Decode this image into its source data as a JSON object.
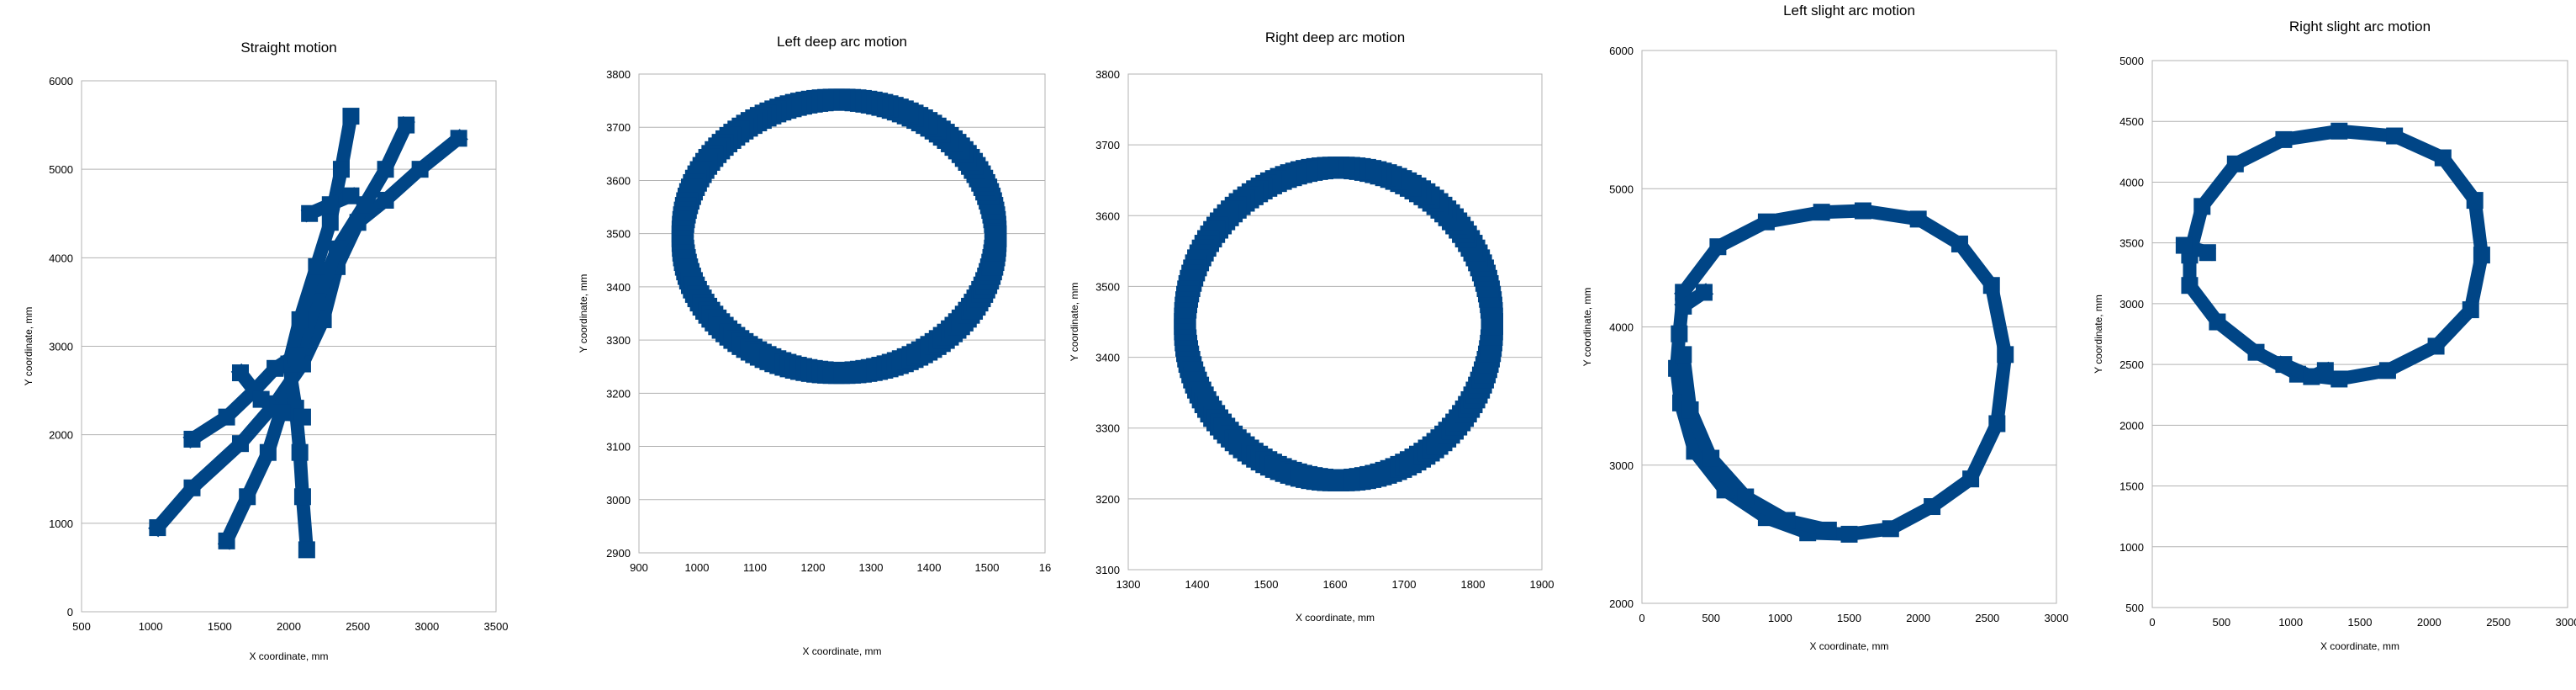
{
  "style": {
    "series_color": "#004586",
    "grid_color": "#b3b3b3"
  },
  "chart_data": [
    {
      "type": "scatter",
      "title": "Straight motion",
      "xlabel": "X coordinate, mm",
      "ylabel": "Y coordinate, mm",
      "xlim": [
        500,
        3500
      ],
      "ylim": [
        0,
        6000
      ],
      "xticks": [
        "500",
        "1000",
        "1500",
        "2000",
        "2500",
        "3000",
        "3500"
      ],
      "yticks": [
        "0",
        "1000",
        "2000",
        "3000",
        "4000",
        "5000",
        "6000"
      ],
      "grid": true,
      "marker_size": 16,
      "series": [
        {
          "points": [
            [
              1050,
              950
            ],
            [
              1300,
              1400
            ],
            [
              1650,
              1900
            ],
            [
              1900,
              2350
            ],
            [
              2100,
              2800
            ],
            [
              2250,
              3300
            ],
            [
              2350,
              3900
            ],
            [
              2500,
              4400
            ],
            [
              2700,
              4650
            ],
            [
              2950,
              5000
            ],
            [
              3230,
              5350
            ]
          ]
        },
        {
          "points": [
            [
              1550,
              800
            ],
            [
              1700,
              1300
            ],
            [
              1850,
              1800
            ],
            [
              1950,
              2300
            ],
            [
              2050,
              2800
            ],
            [
              2200,
              3500
            ],
            [
              2350,
              4100
            ],
            [
              2550,
              4600
            ],
            [
              2700,
              5000
            ],
            [
              2850,
              5500
            ]
          ]
        },
        {
          "points": [
            [
              2130,
              700
            ],
            [
              2100,
              1300
            ],
            [
              2080,
              1800
            ],
            [
              2050,
              2300
            ],
            [
              2000,
              2800
            ],
            [
              2080,
              3300
            ],
            [
              2200,
              3900
            ],
            [
              2300,
              4400
            ],
            [
              2380,
              5000
            ],
            [
              2450,
              5600
            ]
          ]
        },
        {
          "points": [
            [
              1300,
              1950
            ],
            [
              1550,
              2200
            ],
            [
              1750,
              2500
            ],
            [
              1900,
              2750
            ],
            [
              2050,
              2900
            ]
          ]
        },
        {
          "points": [
            [
              1650,
              2700
            ],
            [
              1800,
              2400
            ],
            [
              1950,
              2250
            ],
            [
              2100,
              2200
            ]
          ]
        },
        {
          "points": [
            [
              2150,
              4500
            ],
            [
              2300,
              4600
            ],
            [
              2450,
              4700
            ]
          ]
        }
      ]
    },
    {
      "type": "scatter",
      "title": "Left deep arc motion",
      "xlabel": "X coordinate, mm",
      "ylabel": "Y coordinate, mm",
      "xlim": [
        900,
        1600
      ],
      "ylim": [
        2900,
        3800
      ],
      "xticks": [
        "900",
        "1000",
        "1100",
        "1200",
        "1300",
        "1400",
        "1500",
        "16"
      ],
      "yticks": [
        "2900",
        "3000",
        "3100",
        "3200",
        "3300",
        "3400",
        "3500",
        "3600",
        "3700",
        "3800"
      ],
      "grid": true,
      "marker_size": 22,
      "series": [
        {
          "ellipse": {
            "cx": 1245,
            "cy": 3495,
            "rx": 270,
            "ry": 257
          }
        }
      ]
    },
    {
      "type": "scatter",
      "title": "Right deep arc motion",
      "xlabel": "X coordinate, mm",
      "ylabel": "Y coordinate, mm",
      "xlim": [
        1300,
        1900
      ],
      "ylim": [
        3100,
        3800
      ],
      "xticks": [
        "1300",
        "1400",
        "1500",
        "1600",
        "1700",
        "1800",
        "1900"
      ],
      "yticks": [
        "3100",
        "3200",
        "3300",
        "3400",
        "3500",
        "3600",
        "3700",
        "3800"
      ],
      "grid": true,
      "marker_size": 22,
      "series": [
        {
          "ellipse": {
            "cx": 1605,
            "cy": 3447,
            "rx": 223,
            "ry": 221
          }
        }
      ]
    },
    {
      "type": "scatter",
      "title": "Left slight arc motion",
      "xlabel": "X coordinate, mm",
      "ylabel": "Y coordinate, mm",
      "xlim": [
        0,
        3000
      ],
      "ylim": [
        2000,
        6000
      ],
      "xticks": [
        "0",
        "500",
        "1000",
        "1500",
        "2000",
        "2500",
        "3000"
      ],
      "yticks": [
        "2000",
        "3000",
        "4000",
        "5000",
        "6000"
      ],
      "grid": true,
      "marker_size": 16,
      "series": [
        {
          "points": [
            [
              300,
              4250
            ],
            [
              550,
              4580
            ],
            [
              900,
              4760
            ],
            [
              1300,
              4830
            ],
            [
              1600,
              4840
            ],
            [
              2000,
              4780
            ],
            [
              2300,
              4600
            ],
            [
              2530,
              4300
            ],
            [
              2630,
              3800
            ],
            [
              2570,
              3300
            ],
            [
              2380,
              2900
            ],
            [
              2100,
              2700
            ],
            [
              1800,
              2540
            ],
            [
              1500,
              2500
            ],
            [
              1200,
              2510
            ],
            [
              900,
              2620
            ],
            [
              600,
              2820
            ],
            [
              380,
              3100
            ],
            [
              280,
              3450
            ],
            [
              250,
              3700
            ],
            [
              270,
              3950
            ],
            [
              300,
              4250
            ]
          ]
        },
        {
          "points": [
            [
              300,
              3800
            ],
            [
              350,
              3400
            ],
            [
              500,
              3050
            ],
            [
              750,
              2770
            ],
            [
              1050,
              2600
            ],
            [
              1350,
              2530
            ]
          ]
        },
        {
          "points": [
            [
              300,
              4150
            ],
            [
              450,
              4250
            ]
          ]
        }
      ]
    },
    {
      "type": "scatter",
      "title": "Right slight arc motion",
      "xlabel": "X coordinate, mm",
      "ylabel": "Y coordinate, mm",
      "xlim": [
        0,
        3000
      ],
      "ylim": [
        500,
        5000
      ],
      "xticks": [
        "0",
        "500",
        "1000",
        "1500",
        "2000",
        "2500",
        "3000"
      ],
      "yticks": [
        "500",
        "1000",
        "1500",
        "2000",
        "2500",
        "3000",
        "3500",
        "4000",
        "4500",
        "5000"
      ],
      "grid": true,
      "marker_size": 16,
      "series": [
        {
          "points": [
            [
              270,
              3400
            ],
            [
              360,
              3800
            ],
            [
              600,
              4150
            ],
            [
              950,
              4350
            ],
            [
              1350,
              4420
            ],
            [
              1750,
              4380
            ],
            [
              2100,
              4200
            ],
            [
              2330,
              3850
            ],
            [
              2380,
              3400
            ],
            [
              2300,
              2950
            ],
            [
              2050,
              2650
            ],
            [
              1700,
              2450
            ],
            [
              1350,
              2380
            ],
            [
              1050,
              2420
            ],
            [
              750,
              2600
            ],
            [
              470,
              2850
            ],
            [
              270,
              3150
            ],
            [
              270,
              3400
            ]
          ]
        },
        {
          "points": [
            [
              230,
              3480
            ],
            [
              400,
              3420
            ]
          ]
        },
        {
          "points": [
            [
              950,
              2500
            ],
            [
              1150,
              2400
            ],
            [
              1250,
              2450
            ]
          ]
        }
      ]
    }
  ]
}
